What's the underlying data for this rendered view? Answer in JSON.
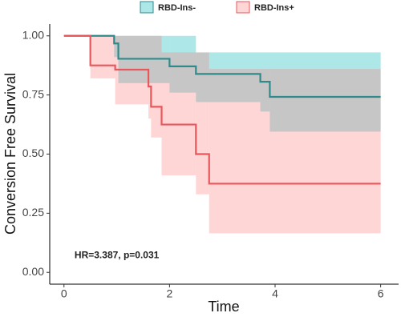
{
  "chart_data": {
    "type": "step",
    "x_label": "Time",
    "y_label": "Conversion Free Survival",
    "annotation": "HR=3.387, p=0.031",
    "annotation_x": 0.2,
    "annotation_y": 0.07,
    "xlim": [
      -0.27,
      6.34
    ],
    "ylim": [
      -0.05,
      1.05
    ],
    "xticks": [
      0,
      2,
      4,
      6
    ],
    "yticks": [
      {
        "value": 0,
        "label": "0.00"
      },
      {
        "value": 0.25,
        "label": "0.25"
      },
      {
        "value": 0.5,
        "label": "0.50"
      },
      {
        "value": 0.75,
        "label": "0.75"
      },
      {
        "value": 1,
        "label": "1.00"
      }
    ],
    "series": [
      {
        "name": "RBD-Ins-",
        "color": "#2f8a8c",
        "band_color": "#00b4b8",
        "x": [
          0,
          0.95,
          1.03,
          2.0,
          2.5,
          3.72,
          3.9,
          6
        ],
        "values": [
          1,
          0.968,
          0.903,
          0.871,
          0.839,
          0.806,
          0.742,
          0.742
        ],
        "upper": [
          1,
          1,
          1,
          1,
          0.93,
          0.93,
          0.93,
          0.93
        ],
        "lower": [
          1,
          0.91,
          0.8,
          0.76,
          0.72,
          0.68,
          0.595,
          0.595
        ]
      },
      {
        "name": "RBD-Ins+",
        "color": "#e8575c",
        "band_color": "#ff7f7f",
        "x": [
          0,
          0.5,
          0.97,
          1.6,
          1.65,
          1.85,
          2.5,
          2.75,
          6
        ],
        "values": [
          1,
          0.875,
          0.857,
          0.786,
          0.7,
          0.625,
          0.5,
          0.375,
          0.375
        ],
        "upper": [
          1,
          1,
          1,
          1,
          1,
          0.93,
          0.93,
          0.86,
          0.86
        ],
        "lower": [
          1,
          0.82,
          0.71,
          0.65,
          0.57,
          0.41,
          0.33,
          0.165,
          0.165
        ]
      }
    ]
  }
}
